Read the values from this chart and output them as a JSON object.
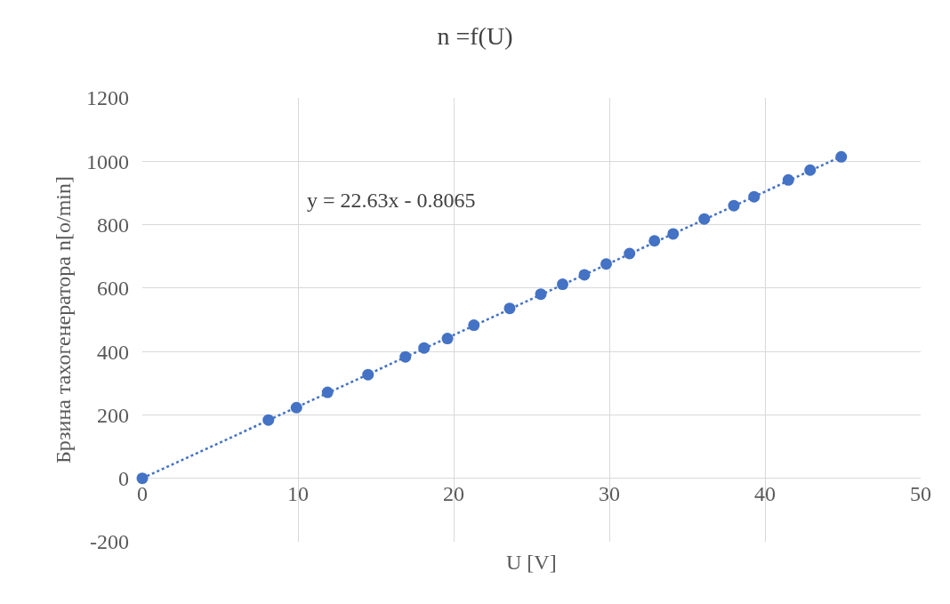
{
  "chart_data": {
    "type": "scatter",
    "title": "n =f(U)",
    "xlabel": "U [V]",
    "ylabel": "Брзина тахогенератора n[o/min]",
    "x": [
      0,
      8.1,
      9.9,
      11.9,
      14.5,
      16.9,
      18.1,
      19.6,
      21.3,
      23.6,
      25.6,
      27.0,
      28.4,
      29.8,
      31.3,
      32.9,
      34.1,
      36.1,
      38.0,
      39.3,
      41.5,
      42.9,
      44.9
    ],
    "series": [
      {
        "color": "#4472c4",
        "marker": "circle",
        "values": [
          0,
          184,
          223,
          271,
          327,
          383,
          411,
          441,
          483,
          536,
          581,
          612,
          642,
          676,
          709,
          749,
          771,
          818,
          860,
          888,
          941,
          972,
          1014
        ]
      },
      {
        "type": "line",
        "color": "#4472c4",
        "line_style": "dotted",
        "x": [
          0,
          44.9
        ],
        "values": [
          0,
          1015
        ]
      }
    ],
    "annotations": [
      "y = 22.63x - 0.8065"
    ],
    "xlim": [
      0,
      50
    ],
    "xticks": [
      0,
      10,
      20,
      30,
      40,
      50
    ],
    "ylim": [
      -200,
      1200
    ],
    "yticks": [
      -200,
      0,
      200,
      400,
      600,
      800,
      1000,
      1200
    ],
    "grid": true
  }
}
